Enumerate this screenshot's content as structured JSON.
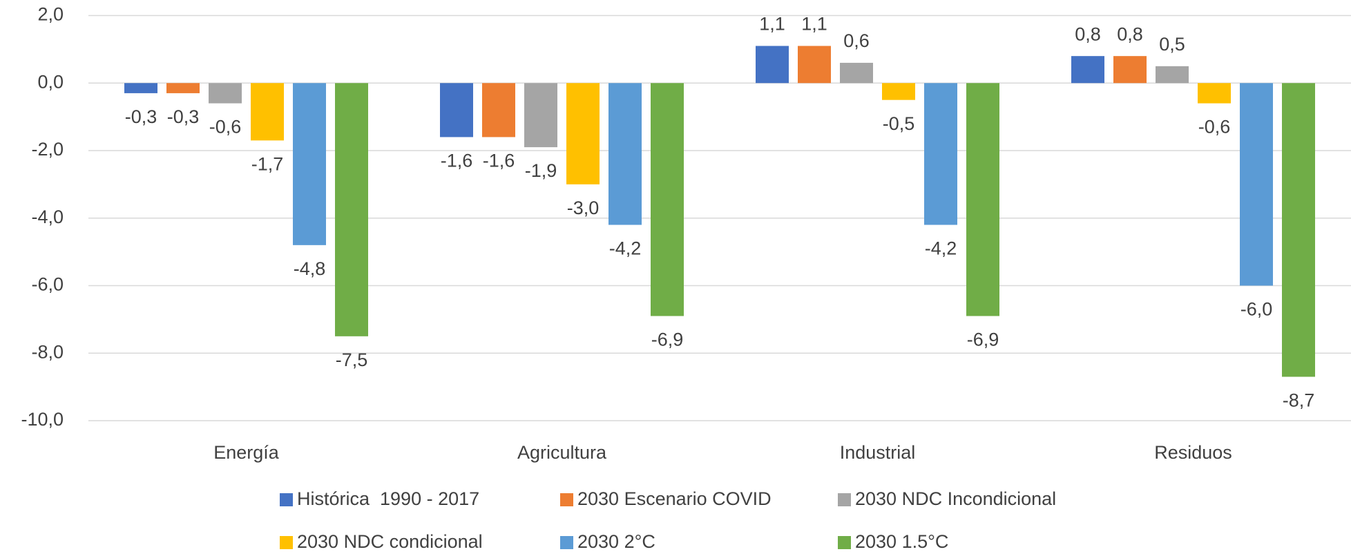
{
  "chart_data": {
    "type": "bar",
    "categories": [
      "Energía",
      "Agricultura",
      "Industrial",
      "Residuos"
    ],
    "series": [
      {
        "name": "Histórica  1990 - 2017",
        "color": "#4472c4",
        "values": [
          -0.3,
          -1.6,
          1.1,
          0.8
        ],
        "value_labels": [
          "-0,3",
          "-1,6",
          "1,1",
          "0,8"
        ]
      },
      {
        "name": "2030 Escenario COVID",
        "color": "#ed7d31",
        "values": [
          -0.3,
          -1.6,
          1.1,
          0.8
        ],
        "value_labels": [
          "-0,3",
          "-1,6",
          "1,1",
          "0,8"
        ]
      },
      {
        "name": "2030 NDC Incondicional",
        "color": "#a5a5a5",
        "values": [
          -0.6,
          -1.9,
          0.6,
          0.5
        ],
        "value_labels": [
          "-0,6",
          "-1,9",
          "0,6",
          "0,5"
        ]
      },
      {
        "name": "2030 NDC condicional",
        "color": "#ffc000",
        "values": [
          -1.7,
          -3.0,
          -0.5,
          -0.6
        ],
        "value_labels": [
          "-1,7",
          "-3,0",
          "-0,5",
          "-0,6"
        ]
      },
      {
        "name": "2030 2°C",
        "color": "#5b9bd5",
        "values": [
          -4.8,
          -4.2,
          -4.2,
          -6.0
        ],
        "value_labels": [
          "-4,8",
          "-4,2",
          "-4,2",
          "-6,0"
        ]
      },
      {
        "name": "2030 1.5°C",
        "color": "#70ad47",
        "values": [
          -7.5,
          -6.9,
          -6.9,
          -8.7
        ],
        "value_labels": [
          "-7,5",
          "-6,9",
          "-6,9",
          "-8,7"
        ]
      }
    ],
    "ylim": [
      -10,
      2
    ],
    "yticks": [
      {
        "value": -10,
        "label": "-10,0"
      },
      {
        "value": -8,
        "label": "-8,0"
      },
      {
        "value": -6,
        "label": "-6,0"
      },
      {
        "value": -4,
        "label": "-4,0"
      },
      {
        "value": -2,
        "label": "-2,0"
      },
      {
        "value": 0,
        "label": "0,0"
      },
      {
        "value": 2,
        "label": "2,0"
      }
    ],
    "grid": true
  }
}
